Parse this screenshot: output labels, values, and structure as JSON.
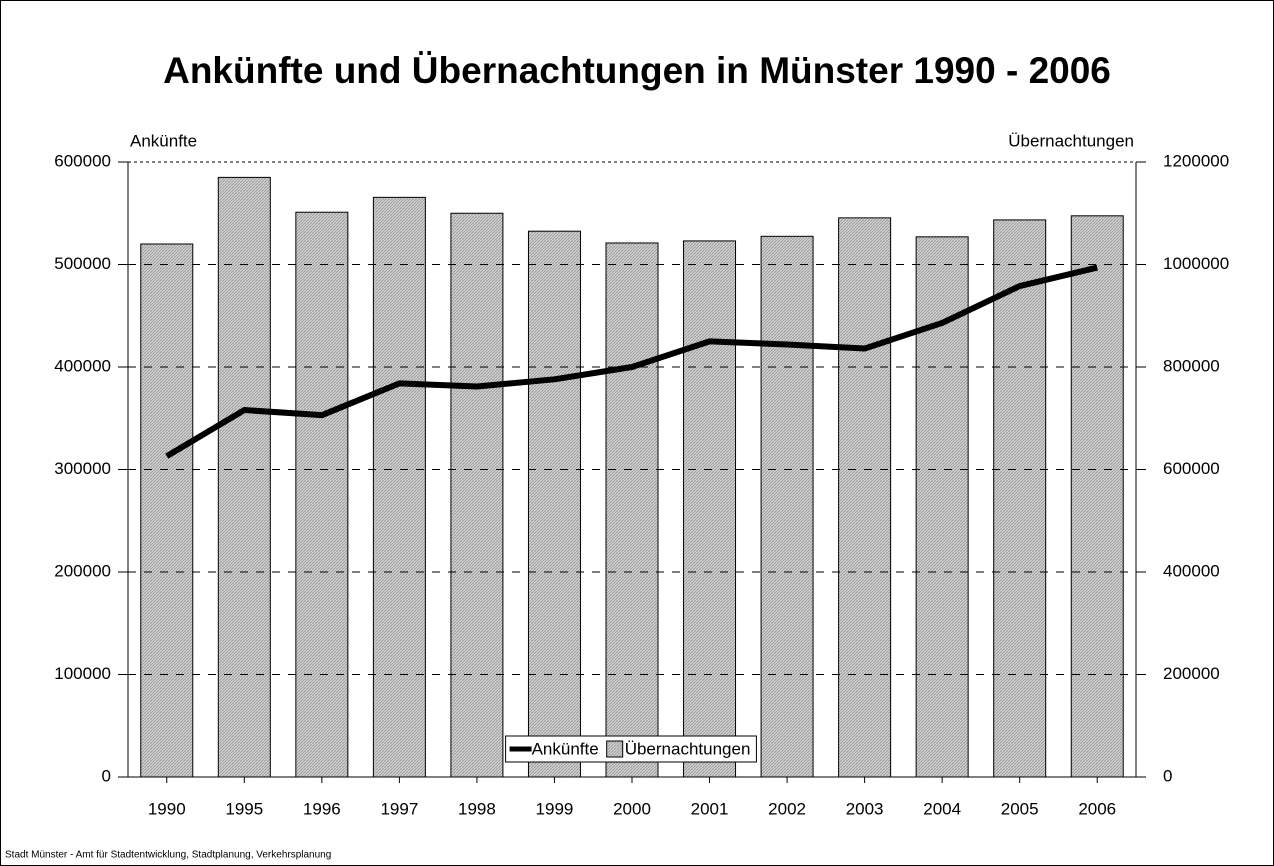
{
  "chart_data": {
    "type": "bar_line",
    "title": "Ankünfte und Übernachtungen in Münster 1990 - 2006",
    "ylabel": "Ankünfte",
    "y2label": "Übernachtungen",
    "categories": [
      "1990",
      "1995",
      "1996",
      "1997",
      "1998",
      "1999",
      "2000",
      "2001",
      "2002",
      "2003",
      "2004",
      "2005",
      "2006"
    ],
    "series": [
      {
        "name": "Ankünfte",
        "type": "line",
        "axis": "y",
        "color": "#000000",
        "values": [
          313000,
          358000,
          353000,
          384000,
          381000,
          388000,
          400000,
          425000,
          422000,
          418000,
          443000,
          479000,
          497000
        ]
      },
      {
        "name": "Übernachtungen",
        "type": "bar",
        "axis": "y2",
        "color": "#c0c0c0",
        "values": [
          1040000,
          1170000,
          1102000,
          1131000,
          1100000,
          1065000,
          1042000,
          1046000,
          1055000,
          1091000,
          1054000,
          1087000,
          1095000
        ]
      }
    ],
    "ylim": [
      0,
      600000
    ],
    "yticks": [
      0,
      100000,
      200000,
      300000,
      400000,
      500000,
      600000
    ],
    "y2lim": [
      0,
      1200000
    ],
    "y2ticks": [
      0,
      200000,
      400000,
      600000,
      800000,
      1000000,
      1200000
    ],
    "grid": true,
    "legend": "bottom",
    "source": "Stadt Münster - Amt für Stadtentwicklung, Stadtplanung, Verkehrsplanung"
  }
}
